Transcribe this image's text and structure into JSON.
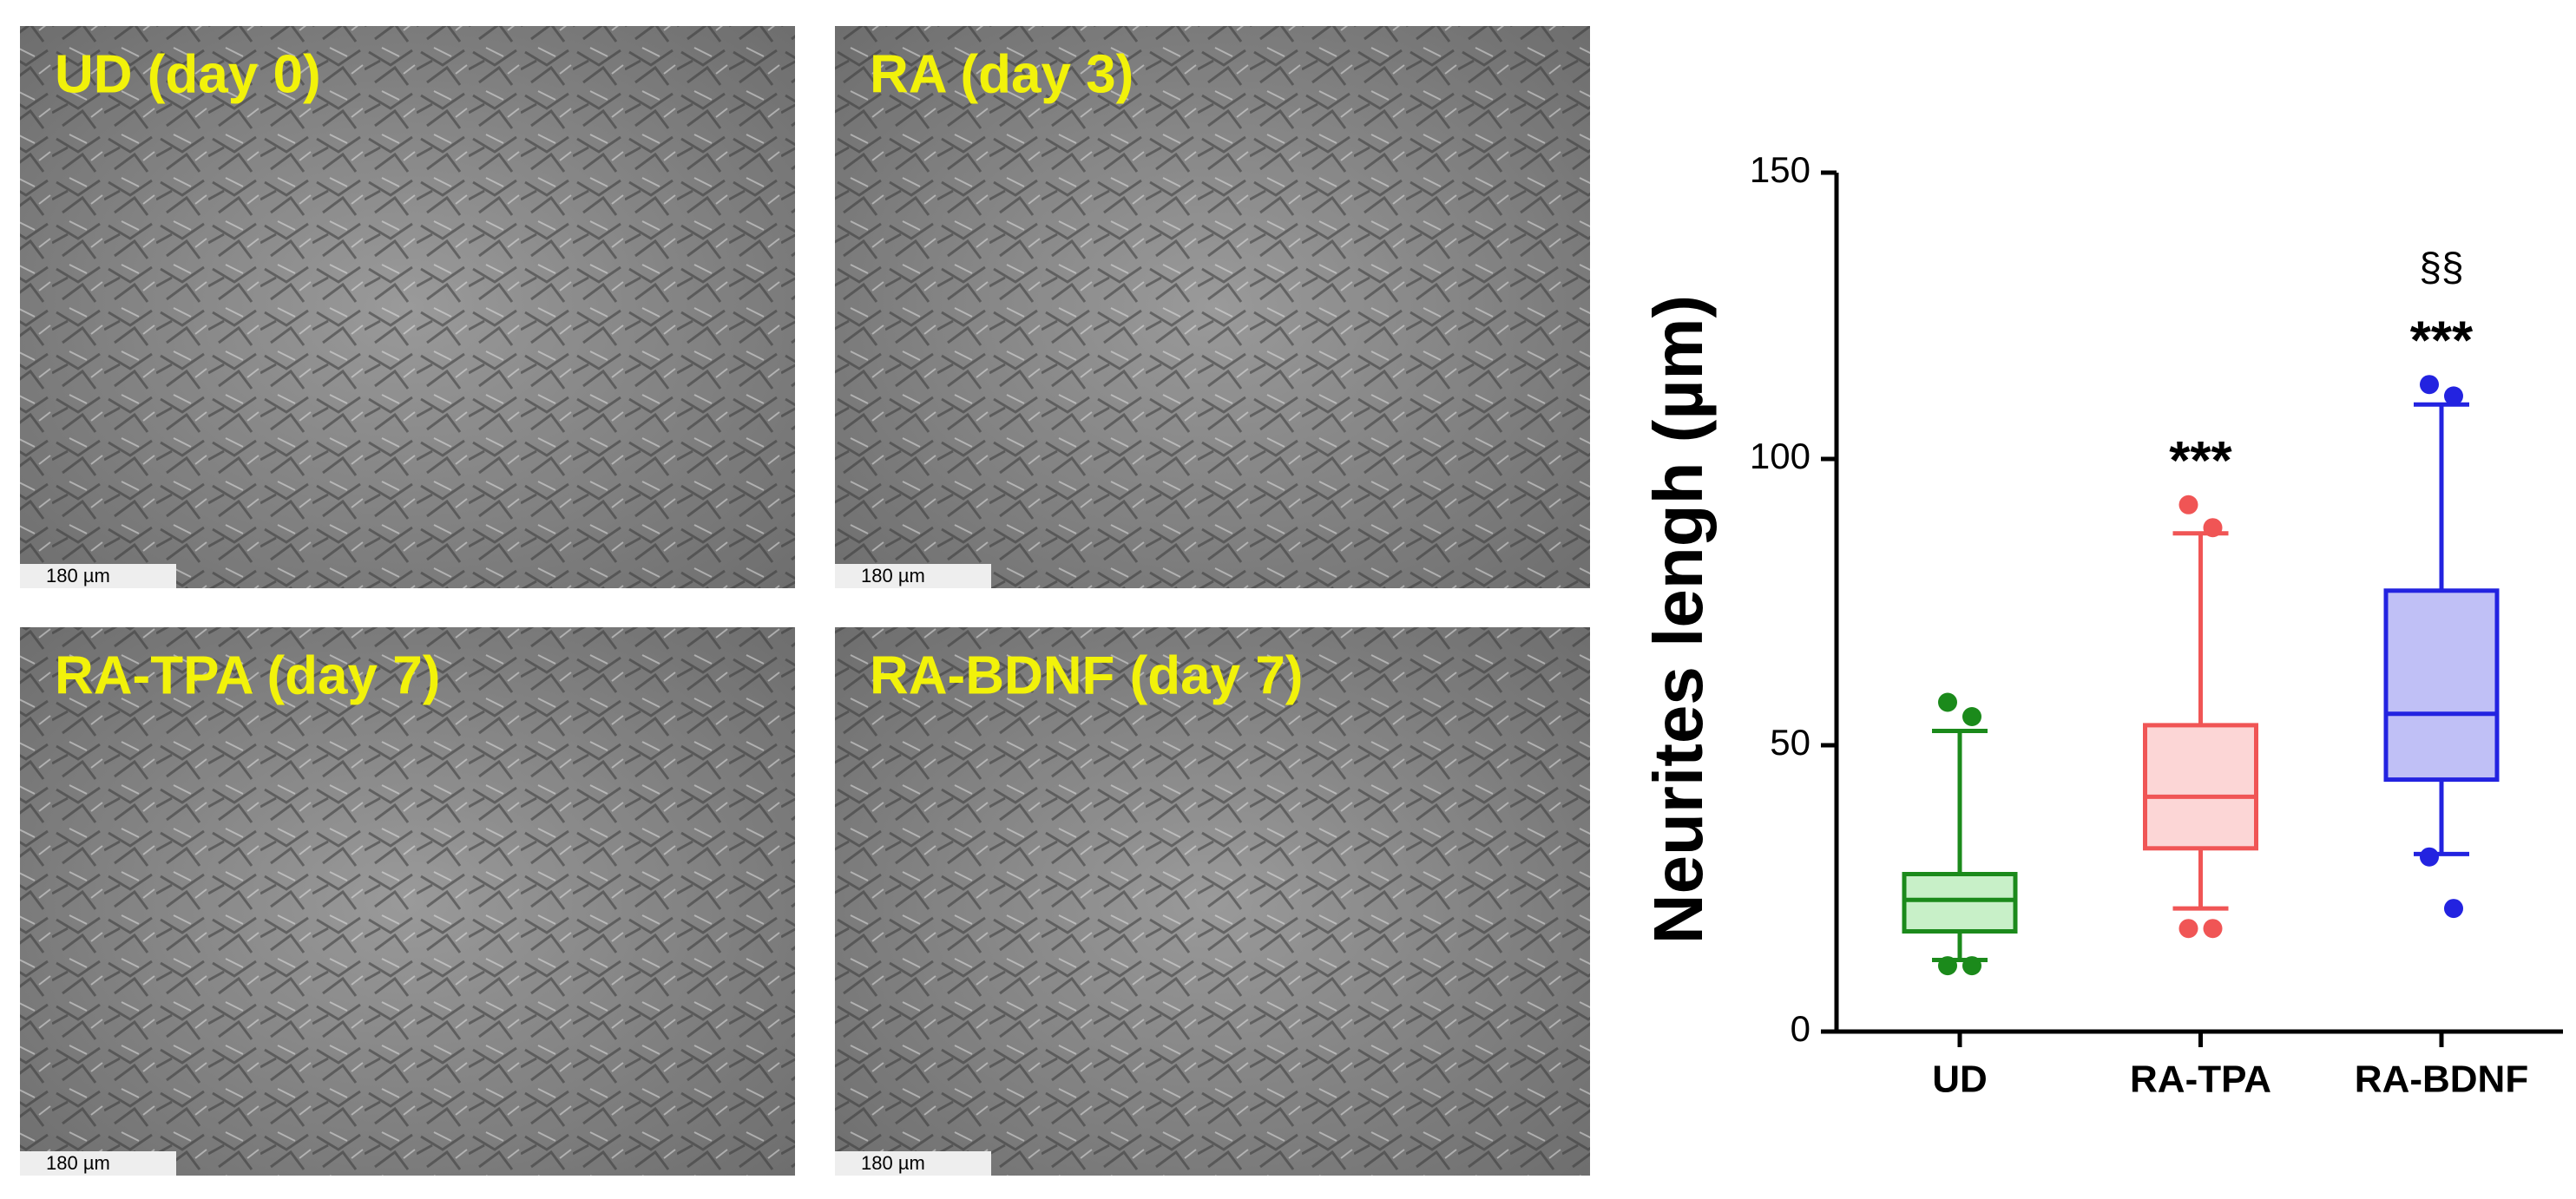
{
  "panels": [
    {
      "label": "UD (day 0)",
      "scale_bar": "180 µm"
    },
    {
      "label": "RA (day 3)",
      "scale_bar": "180 µm"
    },
    {
      "label": "RA-TPA (day 7)",
      "scale_bar": "180 µm"
    },
    {
      "label": "RA-BDNF (day 7)",
      "scale_bar": "180 µm"
    }
  ],
  "chart_data": {
    "type": "box",
    "y_label": "Neurites lengh (µm)",
    "categories": [
      "UD",
      "RA-TPA",
      "RA-BDNF"
    ],
    "boxes": [
      {
        "color": "#1b8a1b",
        "fill": "#c8f0c8",
        "whislo": 12.5,
        "q1": 17.5,
        "med": 23,
        "q3": 27.5,
        "whishi": 52.5,
        "fliers": [
          57.5,
          55,
          11.5,
          11.5
        ]
      },
      {
        "color": "#f05555",
        "fill": "#fcd6d6",
        "whislo": 21.5,
        "q1": 32,
        "med": 41,
        "q3": 53.5,
        "whishi": 87,
        "fliers": [
          92,
          88,
          18,
          18
        ]
      },
      {
        "color": "#2323e0",
        "fill": "#c0c0f6",
        "whislo": 31,
        "q1": 44,
        "med": 55.5,
        "q3": 77,
        "whishi": 109.5,
        "fliers": [
          113,
          111,
          30.5,
          21.5
        ]
      }
    ],
    "annotations": [
      {
        "text": "***",
        "category": "RA-TPA"
      },
      {
        "text": "§§",
        "category": "RA-BDNF"
      },
      {
        "text": "***",
        "category": "RA-BDNF"
      }
    ],
    "ylim": [
      0,
      150
    ],
    "yticks": [
      0,
      50,
      100,
      150
    ]
  }
}
